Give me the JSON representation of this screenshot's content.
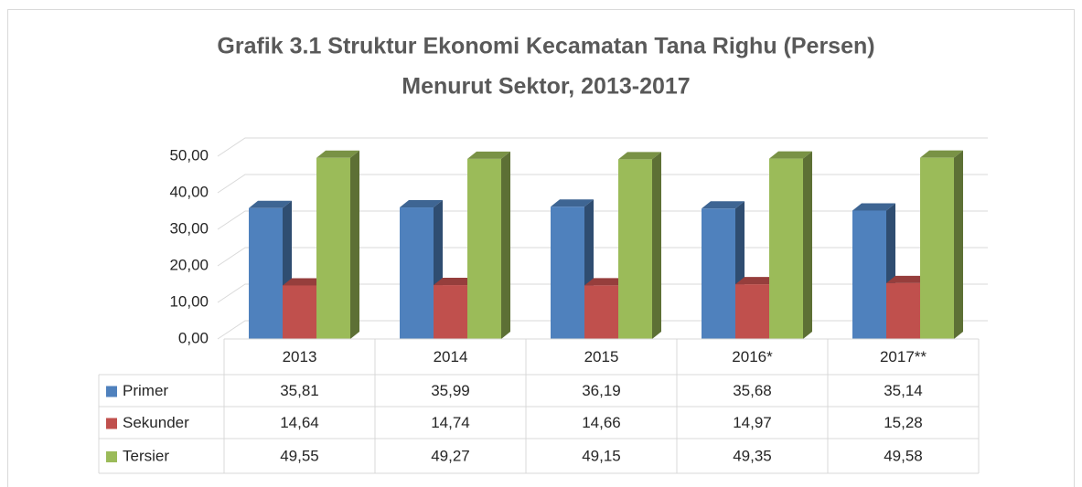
{
  "chart_data": {
    "type": "bar3d",
    "title": [
      "Grafik 3.1 Struktur Ekonomi Kecamatan Tana Righu (Persen)",
      "Menurut Sektor, 2013-2017"
    ],
    "categories": [
      "2013",
      "2014",
      "2015",
      "2016*",
      "2017**"
    ],
    "series": [
      {
        "name": "Primer",
        "color": "#4f81bd",
        "values": [
          35.81,
          35.99,
          36.19,
          35.68,
          35.14
        ],
        "value_labels": [
          "35,81",
          "35,99",
          "36,19",
          "35,68",
          "35,14"
        ]
      },
      {
        "name": "Sekunder",
        "color": "#c0504d",
        "values": [
          14.64,
          14.74,
          14.66,
          14.97,
          15.28
        ],
        "value_labels": [
          "14,64",
          "14,74",
          "14,66",
          "14,97",
          "15,28"
        ]
      },
      {
        "name": "Tersier",
        "color": "#9bbb59",
        "values": [
          49.55,
          49.27,
          49.15,
          49.35,
          49.58
        ],
        "value_labels": [
          "49,55",
          "49,27",
          "49,15",
          "49,35",
          "49,58"
        ]
      }
    ],
    "ylim": [
      0,
      50
    ],
    "yticks": [
      {
        "value": 0,
        "label": "0,00"
      },
      {
        "value": 10,
        "label": "10,00"
      },
      {
        "value": 20,
        "label": "20,00"
      },
      {
        "value": 30,
        "label": "30,00"
      },
      {
        "value": 40,
        "label": "40,00"
      },
      {
        "value": 50,
        "label": "50,00"
      }
    ],
    "grid": true,
    "legend": "table"
  }
}
